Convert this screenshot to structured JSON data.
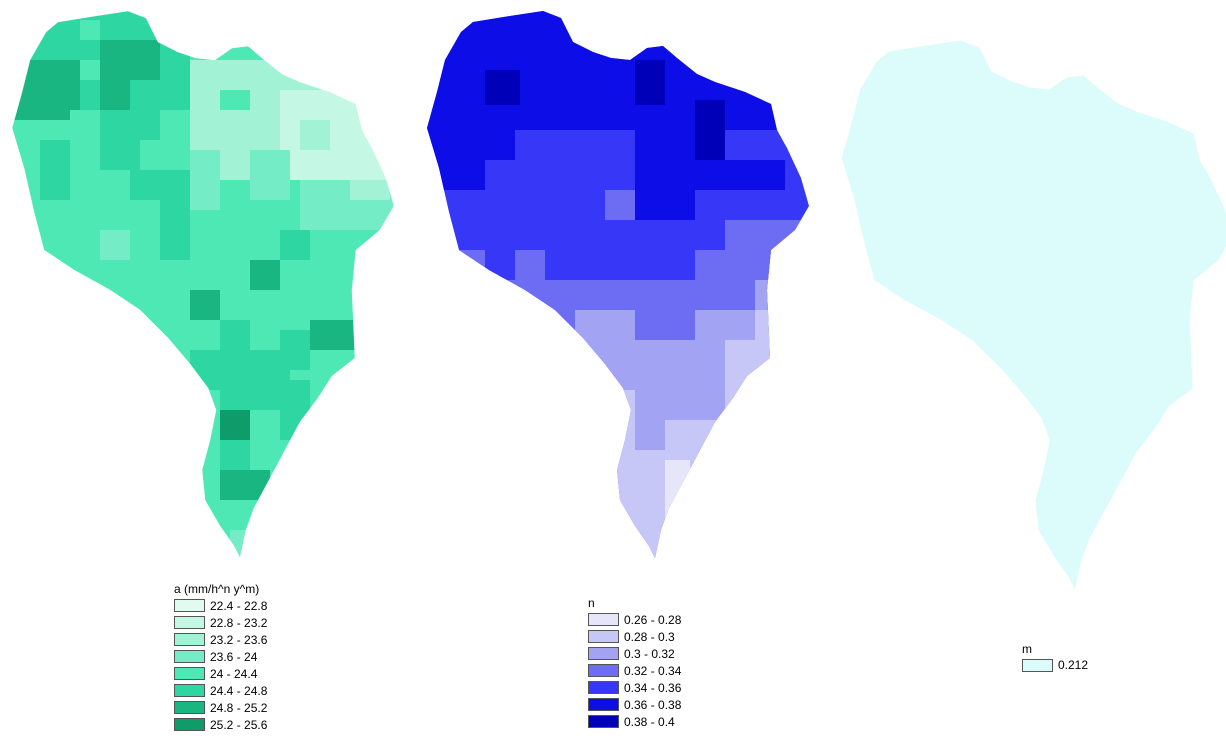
{
  "maps": [
    {
      "id": "a",
      "legend": {
        "title": "a (mm/h^n y^m)",
        "classes": [
          {
            "label": "22.4 - 22.8",
            "color": "#e2fbf1"
          },
          {
            "label": "22.8 - 23.2",
            "color": "#c4f7e4"
          },
          {
            "label": "23.2 - 23.6",
            "color": "#a2f2d5"
          },
          {
            "label": "23.6 - 24",
            "color": "#74edc6"
          },
          {
            "label": "24 - 24.4",
            "color": "#4de8b4"
          },
          {
            "label": "24.4 - 24.8",
            "color": "#2ed6a2"
          },
          {
            "label": "24.8 - 25.2",
            "color": "#19b682"
          },
          {
            "label": "25.2 - 25.6",
            "color": "#0e9c6b"
          }
        ]
      }
    },
    {
      "id": "n",
      "legend": {
        "title": "n",
        "classes": [
          {
            "label": "0.26 - 0.28",
            "color": "#e6e6fb"
          },
          {
            "label": "0.28 - 0.3",
            "color": "#c7c7f7"
          },
          {
            "label": "0.3 - 0.32",
            "color": "#a3a3f4"
          },
          {
            "label": "0.32 - 0.34",
            "color": "#6d6df4"
          },
          {
            "label": "0.34 - 0.36",
            "color": "#3737f7"
          },
          {
            "label": "0.36 - 0.38",
            "color": "#0d0de8"
          },
          {
            "label": "0.38 - 0.4",
            "color": "#0000b8"
          }
        ]
      }
    },
    {
      "id": "m",
      "legend": {
        "title": "m",
        "classes": [
          {
            "label": "0.212",
            "color": "#dcfbfb"
          }
        ]
      }
    }
  ]
}
